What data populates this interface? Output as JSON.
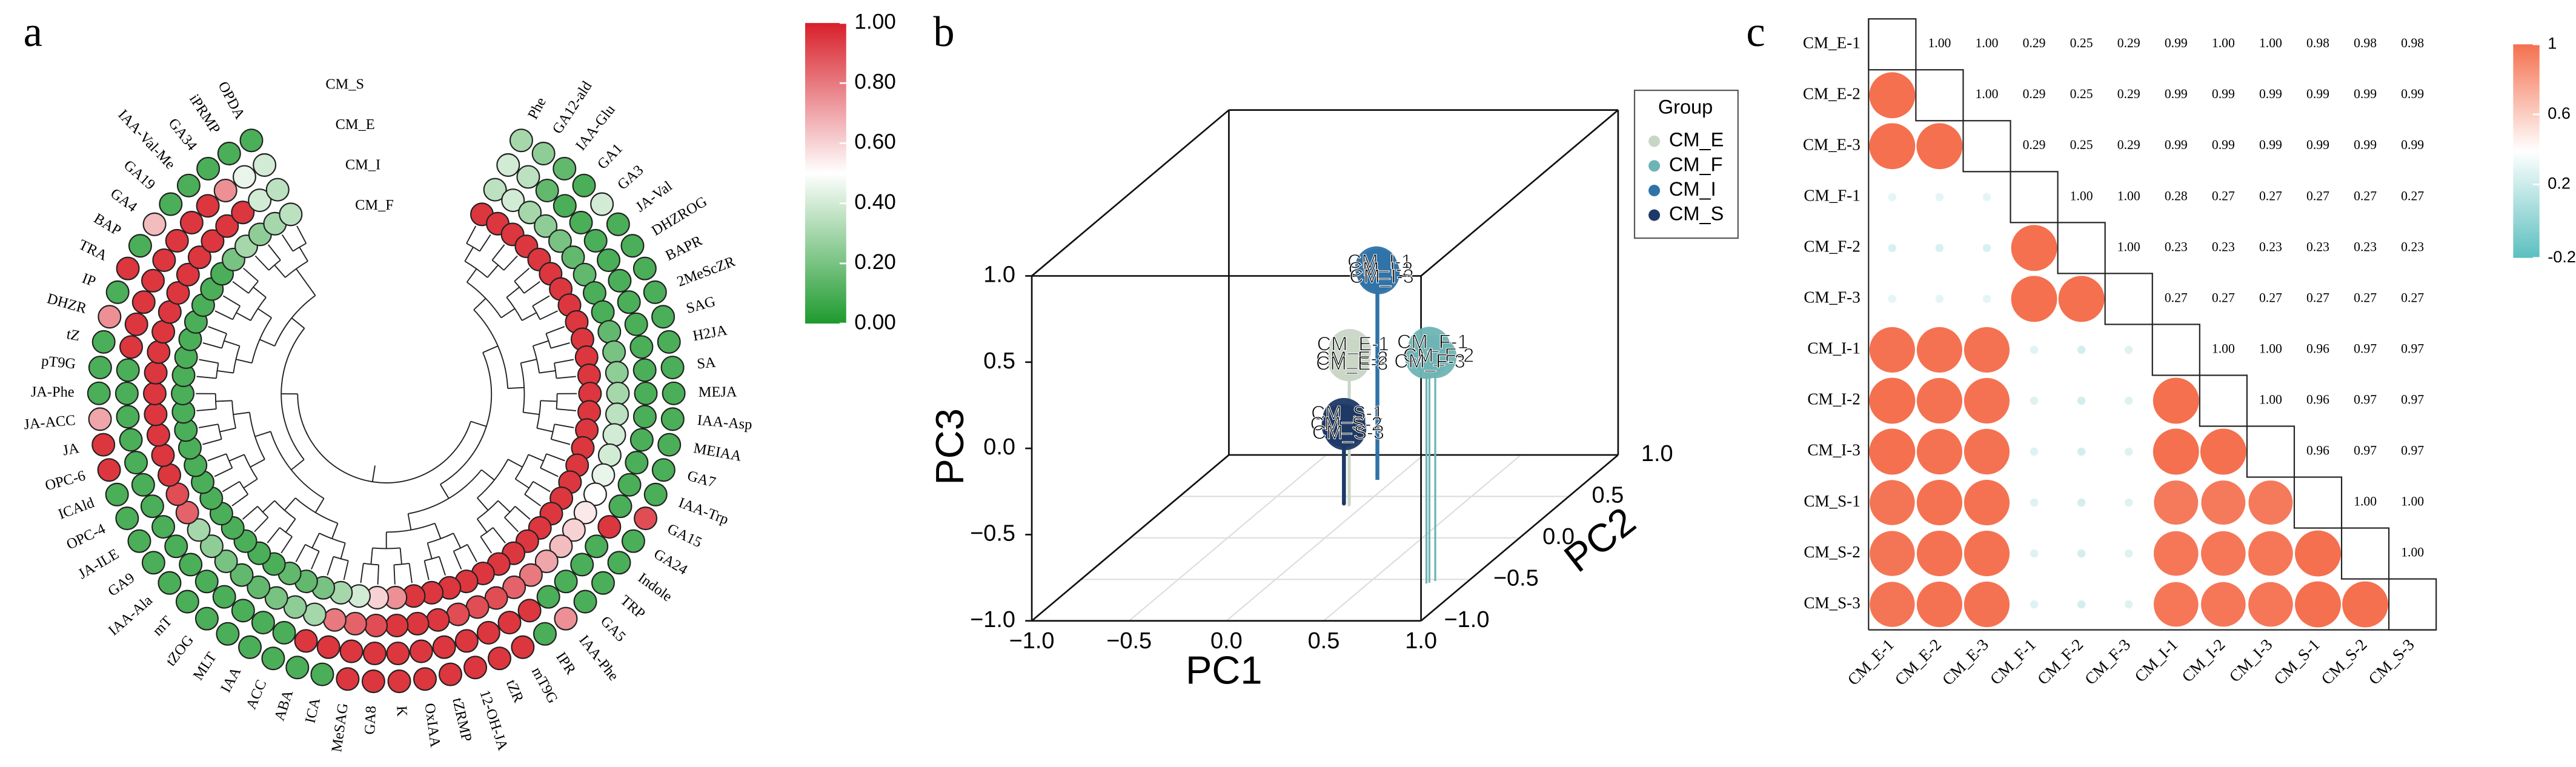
{
  "chart_data": [
    {
      "type": "radial_heatmap",
      "panel": "a",
      "categories": [
        "Phe",
        "GA12-ald",
        "IAA-Glu",
        "GA1",
        "GA3",
        "JA-Val",
        "DHZROG",
        "BAPR",
        "2MeScZR",
        "SAG",
        "H2JA",
        "SA",
        "MEJA",
        "IAA-Asp",
        "MEIAA",
        "GA7",
        "IAA-Trp",
        "GA15",
        "GA24",
        "Indole",
        "TRP",
        "GA5",
        "IAA-Phe",
        "IPR",
        "mT9G",
        "tZR",
        "12-OH-JA",
        "tZRMP",
        "OxIAA",
        "K",
        "GA8",
        "MeSAG",
        "ICA",
        "ABA",
        "ACC",
        "IAA",
        "MLT",
        "tZOG",
        "mT",
        "IAA-Ala",
        "GA9",
        "JA-ILE",
        "OPC-4",
        "ICAld",
        "OPC-6",
        "JA",
        "JA-ACC",
        "JA-Phe",
        "pT9G",
        "tZ",
        "DHZR",
        "IP",
        "TRA",
        "BAP",
        "GA4",
        "GA19",
        "IAA-Val-Me",
        "GA34",
        "iPRMP",
        "OPDA"
      ],
      "series": [
        {
          "name": "CM_S",
          "values": [
            0.3,
            0.25,
            0.15,
            0.1,
            0.4,
            0.1,
            0.1,
            0.1,
            0.1,
            0.1,
            0.1,
            0.1,
            0.1,
            0.1,
            0.1,
            0.1,
            0.1,
            0.9,
            0.1,
            0.1,
            0.1,
            0.1,
            0.75,
            0.1,
            0.95,
            0.95,
            0.95,
            0.95,
            0.95,
            0.95,
            0.95,
            0.95,
            0.1,
            0.1,
            0.1,
            0.1,
            0.1,
            0.1,
            0.1,
            0.1,
            0.1,
            0.1,
            0.1,
            0.1,
            0.95,
            0.95,
            0.7,
            0.1,
            0.1,
            0.1,
            0.75,
            0.1,
            0.95,
            0.1,
            0.65,
            0.1,
            0.1,
            0.1,
            0.1,
            0.1
          ]
        },
        {
          "name": "CM_E",
          "values": [
            0.4,
            0.35,
            0.15,
            0.1,
            0.1,
            0.1,
            0.1,
            0.1,
            0.1,
            0.1,
            0.1,
            0.1,
            0.1,
            0.1,
            0.1,
            0.1,
            0.1,
            0.1,
            0.95,
            0.1,
            0.1,
            0.1,
            0.1,
            0.95,
            0.95,
            0.95,
            0.95,
            0.95,
            0.95,
            0.95,
            0.95,
            0.95,
            0.95,
            0.95,
            0.1,
            0.1,
            0.1,
            0.1,
            0.1,
            0.1,
            0.1,
            0.1,
            0.1,
            0.1,
            0.1,
            0.1,
            0.1,
            0.1,
            0.1,
            0.95,
            0.95,
            0.95,
            0.95,
            0.95,
            0.95,
            0.95,
            0.95,
            0.75,
            0.45,
            0.4
          ]
        },
        {
          "name": "CM_I",
          "values": [
            0.35,
            0.4,
            0.3,
            0.25,
            0.2,
            0.15,
            0.15,
            0.1,
            0.1,
            0.15,
            0.2,
            0.25,
            0.3,
            0.35,
            0.4,
            0.4,
            0.45,
            0.5,
            0.55,
            0.6,
            0.65,
            0.7,
            0.8,
            0.85,
            0.9,
            0.9,
            0.9,
            0.95,
            0.95,
            0.95,
            0.9,
            0.85,
            0.8,
            0.3,
            0.25,
            0.2,
            0.15,
            0.15,
            0.2,
            0.25,
            0.3,
            0.85,
            0.9,
            0.95,
            0.95,
            0.95,
            0.95,
            0.95,
            0.95,
            0.95,
            0.95,
            0.95,
            0.95,
            0.95,
            0.95,
            0.95,
            0.95,
            0.95,
            0.4,
            0.35
          ]
        },
        {
          "name": "CM_F",
          "values": [
            0.95,
            0.95,
            0.95,
            0.95,
            0.95,
            0.95,
            0.95,
            0.95,
            0.95,
            0.95,
            0.95,
            0.95,
            0.95,
            0.95,
            0.95,
            0.95,
            0.95,
            0.95,
            0.95,
            0.95,
            0.95,
            0.95,
            0.95,
            0.95,
            0.95,
            0.95,
            0.95,
            0.95,
            0.95,
            0.75,
            0.6,
            0.4,
            0.3,
            0.2,
            0.15,
            0.15,
            0.1,
            0.1,
            0.1,
            0.1,
            0.1,
            0.1,
            0.1,
            0.1,
            0.1,
            0.1,
            0.1,
            0.1,
            0.1,
            0.1,
            0.1,
            0.1,
            0.1,
            0.1,
            0.1,
            0.2,
            0.3,
            0.25,
            0.3,
            0.35
          ]
        }
      ],
      "clim": [
        0,
        1
      ],
      "cticks": [
        {
          "value": 0,
          "label": "0.00"
        },
        {
          "value": 0.2,
          "label": "0.20"
        },
        {
          "value": 0.4,
          "label": "0.40"
        },
        {
          "value": 0.6,
          "label": "0.60"
        },
        {
          "value": 0.8,
          "label": "0.80"
        },
        {
          "value": 1,
          "label": "1.00"
        }
      ],
      "colors": [
        "#1e9a2e",
        "#ffffff",
        "#d8202a"
      ]
    },
    {
      "type": "scatter3d",
      "panel": "b",
      "x_label": "PC1",
      "y_label": "PC2",
      "z_label": "PC3",
      "xlim": [
        -1,
        1
      ],
      "ylim": [
        -1,
        1
      ],
      "zlim": [
        -1,
        1
      ],
      "xticks": [
        {
          "value": -1,
          "label": "−1.0"
        },
        {
          "value": -0.5,
          "label": "−0.5"
        },
        {
          "value": 0,
          "label": "0.0"
        },
        {
          "value": 0.5,
          "label": "0.5"
        },
        {
          "value": 1,
          "label": "1.0"
        }
      ],
      "yticks": [
        {
          "value": -1,
          "label": "−1.0"
        },
        {
          "value": -0.5,
          "label": "−0.5"
        },
        {
          "value": 0,
          "label": "0.0"
        },
        {
          "value": 0.5,
          "label": "0.5"
        },
        {
          "value": 1,
          "label": "1.0"
        }
      ],
      "zticks": [
        {
          "value": -1,
          "label": "−1.0"
        },
        {
          "value": -0.5,
          "label": "−0.5"
        },
        {
          "value": 0,
          "label": "0.0"
        },
        {
          "value": 0.5,
          "label": "0.5"
        },
        {
          "value": 1,
          "label": "1.0"
        }
      ],
      "legend_title": "Group",
      "grid": true,
      "series": [
        {
          "name": "CM_E",
          "color": "#c9d6c6",
          "labels": [
            "CM_E-1",
            "CM_E-2",
            "CM_E-3"
          ],
          "x": [
            -0.07,
            -0.08,
            -0.07
          ],
          "y": [
            0.39,
            0.4,
            0.38
          ],
          "z": [
            -0.1,
            -0.16,
            -0.15
          ]
        },
        {
          "name": "CM_F",
          "color": "#6fb4b4",
          "labels": [
            "CM_F-1",
            "CM_F-2",
            "CM_F-3"
          ],
          "x": [
            0.81,
            0.83,
            0.8
          ],
          "y": [
            -0.54,
            -0.52,
            -0.55
          ],
          "z": [
            0.36,
            0.3,
            0.31
          ]
        },
        {
          "name": "CM_I",
          "color": "#2f73a8",
          "labels": [
            "CM_I-1",
            "CM_I-2",
            "CM_I-3"
          ],
          "x": [
            -0.09,
            -0.09,
            -0.08
          ],
          "y": [
            0.7,
            0.71,
            0.7
          ],
          "z": [
            0.23,
            0.21,
            0.2
          ]
        },
        {
          "name": "CM_S",
          "color": "#1d3966",
          "labels": [
            "CM_S-1",
            "CM_S-2",
            "CM_S-3"
          ],
          "x": [
            -0.1,
            -0.11,
            -0.1
          ],
          "y": [
            0.39,
            0.4,
            0.4
          ],
          "z": [
            -0.5,
            -0.54,
            -0.56
          ]
        }
      ]
    },
    {
      "type": "corrplot",
      "panel": "c",
      "categories": [
        "CM_E-1",
        "CM_E-2",
        "CM_E-3",
        "CM_F-1",
        "CM_F-2",
        "CM_F-3",
        "CM_I-1",
        "CM_I-2",
        "CM_I-3",
        "CM_S-1",
        "CM_S-2",
        "CM_S-3"
      ],
      "values": [
        [
          null,
          1,
          1,
          0.29,
          0.25,
          0.29,
          0.99,
          1,
          1,
          0.98,
          0.98,
          0.98
        ],
        [
          null,
          null,
          1,
          0.29,
          0.25,
          0.29,
          0.99,
          0.99,
          0.99,
          0.99,
          0.99,
          0.99
        ],
        [
          null,
          null,
          null,
          0.29,
          0.25,
          0.29,
          0.99,
          0.99,
          0.99,
          0.99,
          0.99,
          0.99
        ],
        [
          null,
          null,
          null,
          null,
          1,
          1,
          0.28,
          0.27,
          0.27,
          0.27,
          0.27,
          0.27
        ],
        [
          null,
          null,
          null,
          null,
          null,
          1,
          0.23,
          0.23,
          0.23,
          0.23,
          0.23,
          0.23
        ],
        [
          null,
          null,
          null,
          null,
          null,
          null,
          0.27,
          0.27,
          0.27,
          0.27,
          0.27,
          0.27
        ],
        [
          null,
          null,
          null,
          null,
          null,
          null,
          null,
          1,
          1,
          0.96,
          0.97,
          0.97
        ],
        [
          null,
          null,
          null,
          null,
          null,
          null,
          null,
          null,
          1,
          0.96,
          0.97,
          0.97
        ],
        [
          null,
          null,
          null,
          null,
          null,
          null,
          null,
          null,
          null,
          0.96,
          0.97,
          0.97
        ],
        [
          null,
          null,
          null,
          null,
          null,
          null,
          null,
          null,
          null,
          null,
          1,
          1
        ],
        [
          null,
          null,
          null,
          null,
          null,
          null,
          null,
          null,
          null,
          null,
          null,
          1
        ],
        [
          null,
          null,
          null,
          null,
          null,
          null,
          null,
          null,
          null,
          null,
          null,
          null
        ]
      ],
      "value_labels": [
        [
          null,
          "1.00",
          "1.00",
          "0.29",
          "0.25",
          "0.29",
          "0.99",
          "1.00",
          "1.00",
          "0.98",
          "0.98",
          "0.98"
        ],
        [
          null,
          null,
          "1.00",
          "0.29",
          "0.25",
          "0.29",
          "0.99",
          "0.99",
          "0.99",
          "0.99",
          "0.99",
          "0.99"
        ],
        [
          null,
          null,
          null,
          "0.29",
          "0.25",
          "0.29",
          "0.99",
          "0.99",
          "0.99",
          "0.99",
          "0.99",
          "0.99"
        ],
        [
          null,
          null,
          null,
          null,
          "1.00",
          "1.00",
          "0.28",
          "0.27",
          "0.27",
          "0.27",
          "0.27",
          "0.27"
        ],
        [
          null,
          null,
          null,
          null,
          null,
          "1.00",
          "0.23",
          "0.23",
          "0.23",
          "0.23",
          "0.23",
          "0.23"
        ],
        [
          null,
          null,
          null,
          null,
          null,
          null,
          "0.27",
          "0.27",
          "0.27",
          "0.27",
          "0.27",
          "0.27"
        ],
        [
          null,
          null,
          null,
          null,
          null,
          null,
          null,
          "1.00",
          "1.00",
          "0.96",
          "0.97",
          "0.97"
        ],
        [
          null,
          null,
          null,
          null,
          null,
          null,
          null,
          null,
          "1.00",
          "0.96",
          "0.97",
          "0.97"
        ],
        [
          null,
          null,
          null,
          null,
          null,
          null,
          null,
          null,
          null,
          "0.96",
          "0.97",
          "0.97"
        ],
        [
          null,
          null,
          null,
          null,
          null,
          null,
          null,
          null,
          null,
          null,
          "1.00",
          "1.00"
        ],
        [
          null,
          null,
          null,
          null,
          null,
          null,
          null,
          null,
          null,
          null,
          null,
          "1.00"
        ],
        [
          null,
          null,
          null,
          null,
          null,
          null,
          null,
          null,
          null,
          null,
          null,
          null
        ]
      ],
      "clim": [
        -0.22,
        1
      ],
      "cticks": [
        1,
        0.6,
        0.2,
        -0.22
      ],
      "colors": [
        "#5bbfbf",
        "#ffffff",
        "#f4704f"
      ]
    }
  ]
}
